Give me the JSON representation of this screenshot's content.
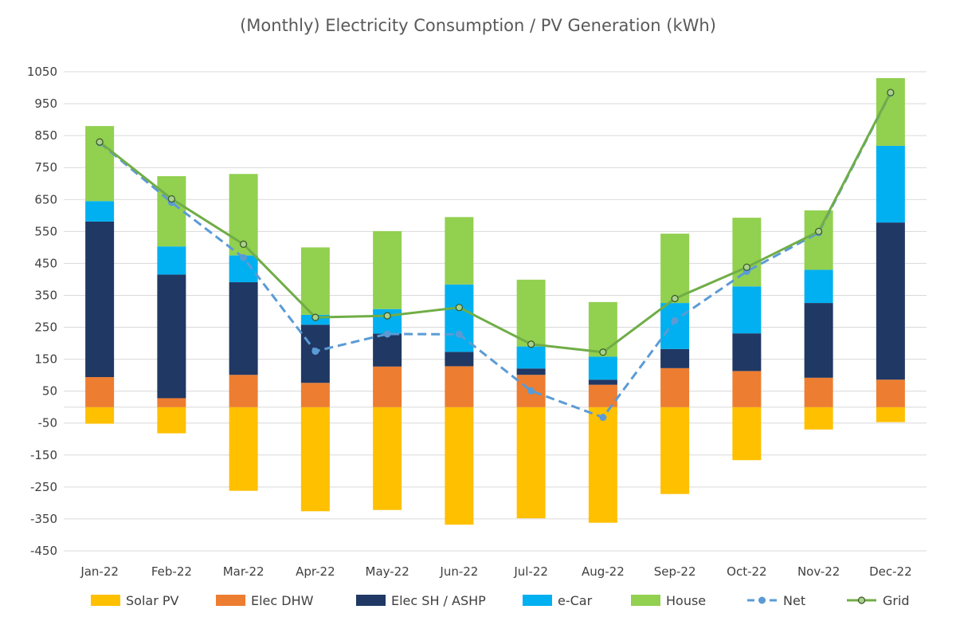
{
  "chart_data": {
    "type": "bar",
    "stacked": true,
    "title": "(Monthly) Electricity Consumption / PV Generation (kWh)",
    "xlabel": "",
    "ylabel": "",
    "ylim": [
      -450,
      1050
    ],
    "yticks": [
      1050,
      950,
      850,
      750,
      650,
      550,
      450,
      350,
      250,
      150,
      50,
      -50,
      -150,
      -250,
      -350,
      -450
    ],
    "grid": true,
    "legend_position": "bottom",
    "categories": [
      "Jan-22",
      "Feb-22",
      "Mar-22",
      "Apr-22",
      "May-22",
      "Jun-22",
      "Jul-22",
      "Aug-22",
      "Sep-22",
      "Oct-22",
      "Nov-22",
      "Dec-22"
    ],
    "series": [
      {
        "name": "Solar PV",
        "kind": "bar",
        "color": "#FFC000",
        "values": [
          -52,
          -82,
          -262,
          -326,
          -322,
          -368,
          -348,
          -362,
          -272,
          -166,
          -70,
          -47
        ]
      },
      {
        "name": "Elec DHW",
        "kind": "bar",
        "color": "#ED7D31",
        "values": [
          94,
          28,
          101,
          76,
          127,
          128,
          101,
          70,
          122,
          113,
          92,
          86
        ]
      },
      {
        "name": "Elec SH / ASHP",
        "kind": "bar",
        "color": "#203864",
        "values": [
          487,
          387,
          290,
          182,
          103,
          45,
          20,
          16,
          60,
          118,
          234,
          492
        ]
      },
      {
        "name": "e-Car",
        "kind": "bar",
        "color": "#00B0F0",
        "values": [
          64,
          88,
          84,
          31,
          77,
          211,
          69,
          72,
          144,
          147,
          104,
          240
        ]
      },
      {
        "name": "House",
        "kind": "bar",
        "color": "#92D050",
        "values": [
          235,
          220,
          255,
          211,
          244,
          211,
          209,
          171,
          217,
          215,
          186,
          212
        ]
      },
      {
        "name": "Net",
        "kind": "line",
        "color": "#5B9BD5",
        "dashed": true,
        "values": [
          828,
          641,
          468,
          175,
          229,
          228,
          51,
          -32,
          271,
          425,
          546,
          983
        ]
      },
      {
        "name": "Grid",
        "kind": "line",
        "color": "#70AD47",
        "dashed": false,
        "values": [
          830,
          652,
          510,
          281,
          286,
          312,
          197,
          172,
          340,
          438,
          550,
          985
        ]
      }
    ]
  }
}
